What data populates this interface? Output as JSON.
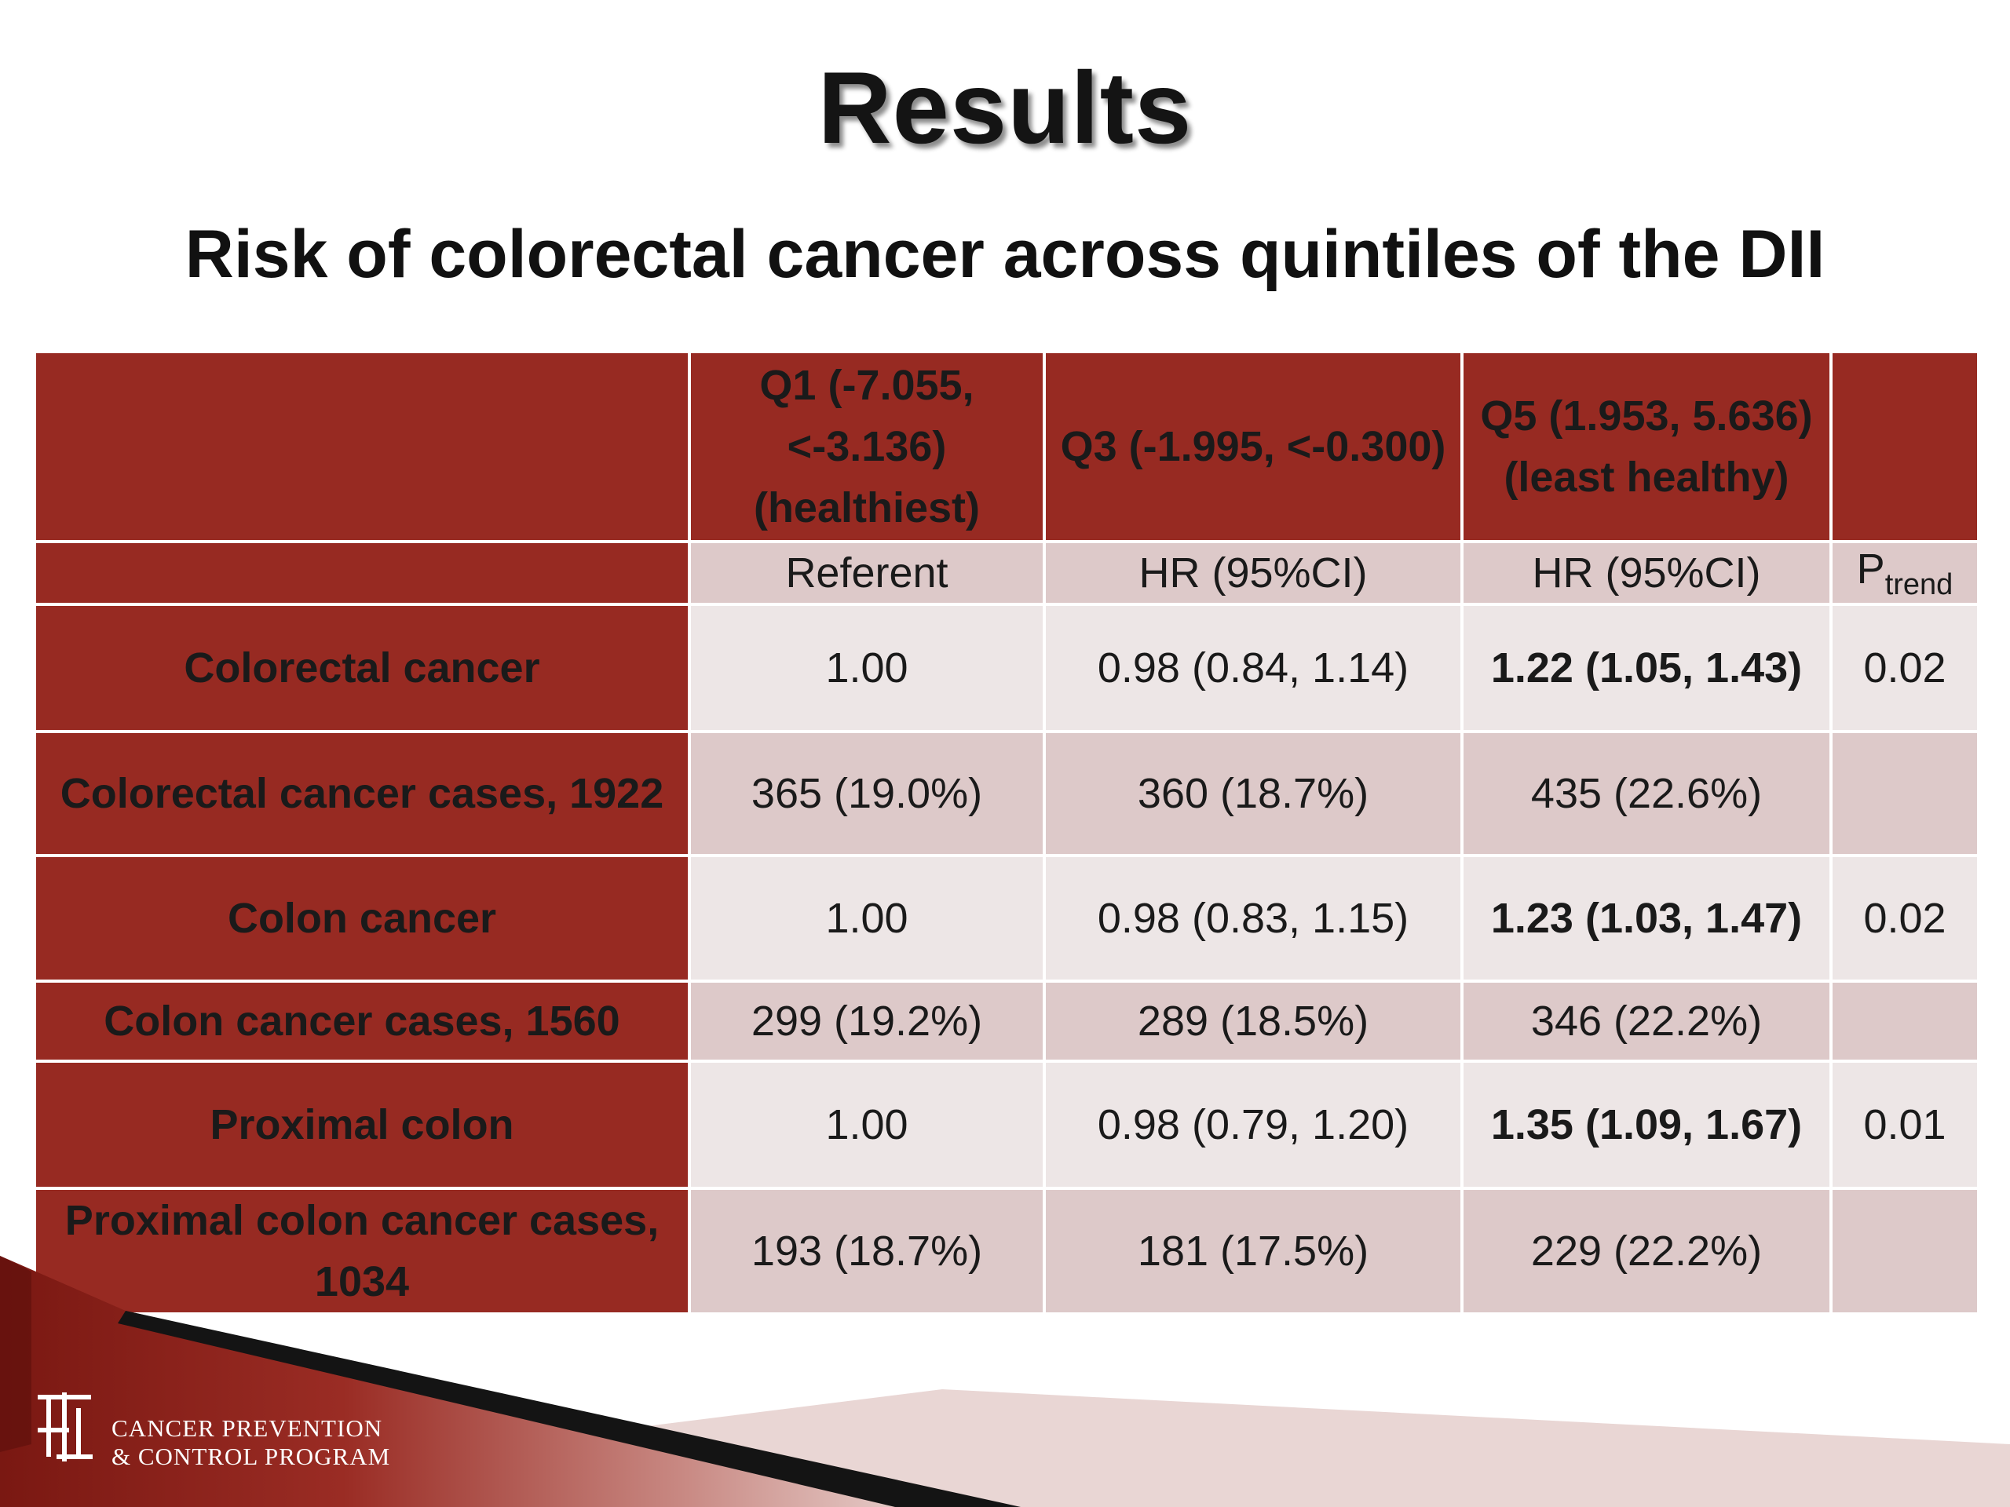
{
  "slide": {
    "title": "Results",
    "subtitle": "Risk of colorectal cancer across quintiles of the DII"
  },
  "table": {
    "header": {
      "empty": "",
      "q1": "Q1 (-7.055, <-3.136) (healthiest)",
      "q3": "Q3 (-1.995, <-0.300)",
      "q5": "Q5 (1.953, 5.636) (least healthy)",
      "ptrend_blank": ""
    },
    "subheader": {
      "q1": "Referent",
      "q3": "HR (95%CI)",
      "q5": "HR (95%CI)",
      "p_main": "P",
      "p_sub": "trend"
    },
    "rows": [
      {
        "label": "Colorectal cancer",
        "q1": "1.00",
        "q3": "0.98 (0.84, 1.14)",
        "q5": "1.22 (1.05, 1.43)",
        "p": "0.02"
      },
      {
        "label": "Colorectal cancer cases, 1922",
        "q1": "365 (19.0%)",
        "q3": "360 (18.7%)",
        "q5": "435 (22.6%)",
        "p": ""
      },
      {
        "label": "Colon cancer",
        "q1": "1.00",
        "q3": "0.98 (0.83, 1.15)",
        "q5": "1.23 (1.03, 1.47)",
        "p": "0.02"
      },
      {
        "label": "Colon cancer cases, 1560",
        "q1": "299 (19.2%)",
        "q3": "289 (18.5%)",
        "q5": "346 (22.2%)",
        "p": ""
      },
      {
        "label": "Proximal colon",
        "q1": "1.00",
        "q3": "0.98 (0.79, 1.20)",
        "q5": "1.35 (1.09, 1.67)",
        "p": "0.01"
      },
      {
        "label": "Proximal colon cancer cases, 1034",
        "q1": "193 (18.7%)",
        "q3": "181 (17.5%)",
        "q5": "229 (22.2%)",
        "p": ""
      }
    ]
  },
  "footer": {
    "logo_line1": "CANCER PREVENTION",
    "logo_line2": "& CONTROL PROGRAM",
    "logo_icon": "program-monogram-icon"
  },
  "colors": {
    "dark_red": "#972a22",
    "light_cell": "#ede6e6",
    "mid_cell": "#ddc9c9"
  }
}
